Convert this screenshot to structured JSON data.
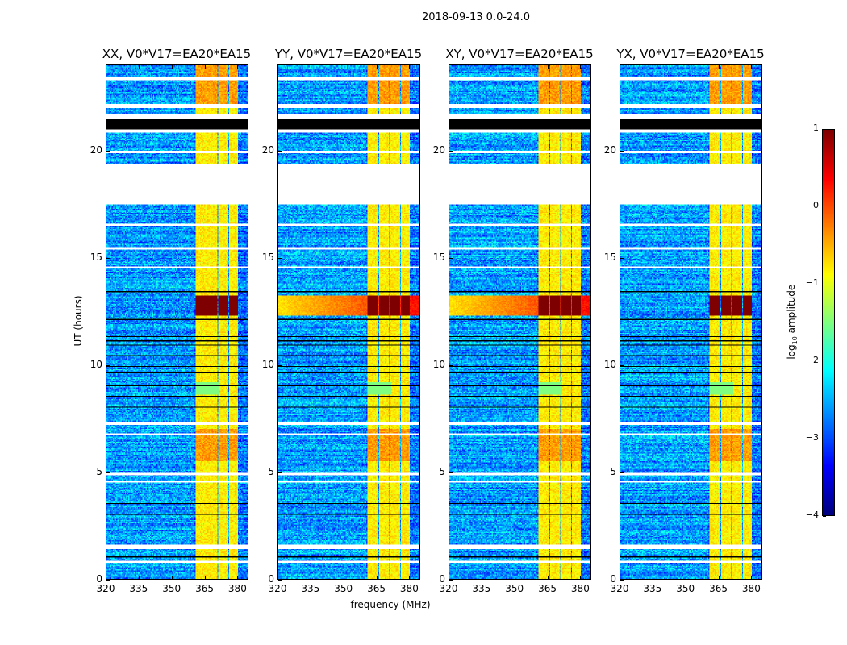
{
  "suptitle": "2018-09-13 0.0-24.0",
  "xlabel": "frequency (MHz)",
  "ylabel": "UT (hours)",
  "colorbar": {
    "label_prefix": "log",
    "label_sub": "10",
    "label_suffix": " amplitude",
    "ticks": [
      "1",
      "0",
      "−1",
      "−2",
      "−3",
      "−4"
    ],
    "range": [
      -4,
      1
    ],
    "colormap": "jet"
  },
  "chart_data": [
    {
      "type": "heatmap",
      "title": "XX, V0*V17=EA20*EA15",
      "event_broadband": false
    },
    {
      "type": "heatmap",
      "title": "YY, V0*V17=EA20*EA15",
      "event_broadband": true
    },
    {
      "type": "heatmap",
      "title": "XY, V0*V17=EA20*EA15",
      "event_broadband": true
    },
    {
      "type": "heatmap",
      "title": "YX, V0*V17=EA20*EA15",
      "event_broadband": false
    }
  ],
  "axes": {
    "xlim": [
      320,
      385
    ],
    "ylim": [
      0,
      24
    ],
    "xticks": [
      "320",
      "335",
      "350",
      "365",
      "380"
    ],
    "yticks": [
      "0",
      "5",
      "10",
      "15",
      "20"
    ],
    "xtick_values": [
      320,
      335,
      350,
      365,
      380
    ],
    "ytick_values": [
      0,
      5,
      10,
      15,
      20
    ]
  },
  "features": {
    "background_log_amp": -2.6,
    "rfi_bands_mhz": [
      [
        361,
        366
      ],
      [
        366.5,
        371
      ],
      [
        371.5,
        376
      ],
      [
        376.5,
        380.7
      ]
    ],
    "rfi_log_amp": -0.8,
    "strong_event_hours": [
      12.3,
      13.25
    ],
    "strong_event_log_amp": 1.0,
    "blank_hours": [
      [
        17.5,
        19.4
      ],
      [
        20.85,
        21.0
      ],
      [
        21.5,
        21.7
      ],
      [
        22.0,
        22.2
      ],
      [
        0.75,
        0.85
      ],
      [
        1.4,
        1.6
      ],
      [
        4.5,
        4.6
      ],
      [
        4.85,
        4.95
      ],
      [
        7.2,
        7.3
      ],
      [
        6.7,
        6.8
      ],
      [
        14.5,
        14.6
      ],
      [
        15.4,
        15.5
      ],
      [
        16.5,
        16.6
      ],
      [
        19.9,
        20.0
      ],
      [
        23.3,
        23.45
      ]
    ],
    "flagged_hours": [
      [
        21.0,
        21.5
      ],
      [
        3.0,
        3.05
      ],
      [
        3.5,
        3.55
      ],
      [
        1.0,
        1.05
      ],
      [
        8.0,
        8.05
      ],
      [
        8.5,
        8.55
      ],
      [
        9.0,
        9.05
      ],
      [
        9.6,
        9.65
      ],
      [
        9.9,
        9.95
      ],
      [
        10.4,
        10.45
      ],
      [
        10.9,
        10.95
      ],
      [
        11.1,
        11.15
      ],
      [
        11.3,
        11.35
      ],
      [
        12.1,
        12.15
      ],
      [
        13.4,
        13.45
      ]
    ]
  }
}
